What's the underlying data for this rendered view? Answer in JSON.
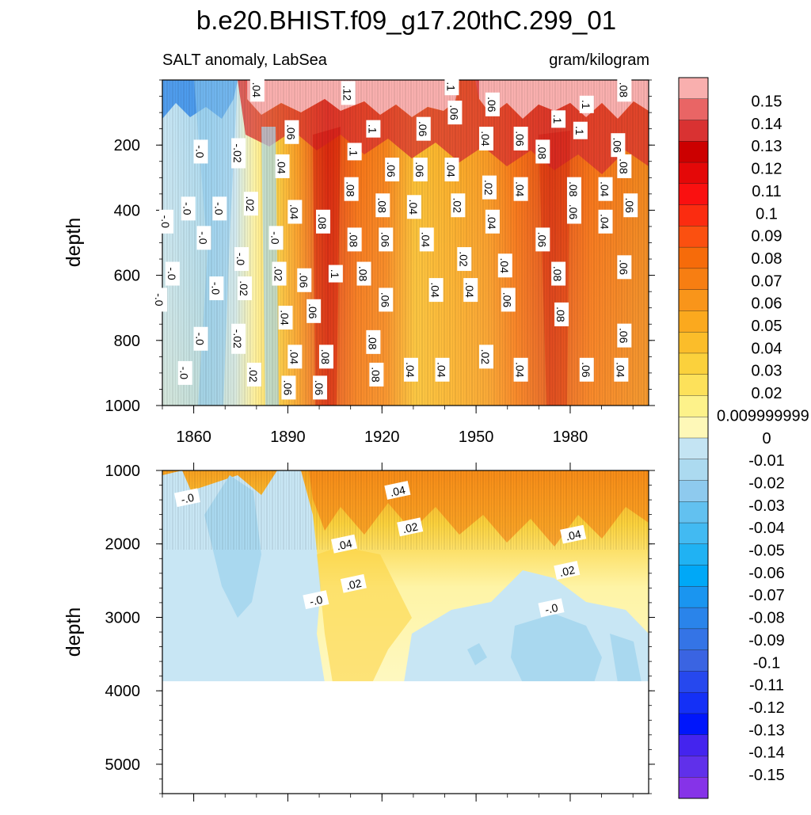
{
  "chart_data": [
    {
      "type": "heatmap",
      "panel": "upper",
      "title": "b.e20.BHIST.f09_g17.20thC.299_01",
      "left_string": "SALT anomaly, LabSea",
      "right_string": "gram/kilogram",
      "ylabel": "depth",
      "xlabel": "",
      "xlim": [
        1850,
        2005
      ],
      "ylim": [
        0,
        1000
      ],
      "y_reversed": true,
      "x_ticks": [
        1860,
        1890,
        1920,
        1950,
        1980
      ],
      "y_ticks": [
        200,
        400,
        600,
        800,
        1000
      ],
      "contour_labels": [
        {
          "x": 1880,
          "y": 30,
          "label": ".04"
        },
        {
          "x": 1909,
          "y": 40,
          "label": ".12"
        },
        {
          "x": 1942,
          "y": 20,
          "label": ".1"
        },
        {
          "x": 1955,
          "y": 75,
          "label": ".06"
        },
        {
          "x": 1985,
          "y": 75,
          "label": ".1"
        },
        {
          "x": 1976,
          "y": 120,
          "label": ".1"
        },
        {
          "x": 1997,
          "y": 30,
          "label": ".08"
        },
        {
          "x": 1891,
          "y": 160,
          "label": ".06"
        },
        {
          "x": 1917,
          "y": 150,
          "label": ".1"
        },
        {
          "x": 1933,
          "y": 150,
          "label": ".06"
        },
        {
          "x": 1943,
          "y": 100,
          "label": ".06"
        },
        {
          "x": 1953,
          "y": 180,
          "label": ".04"
        },
        {
          "x": 1964,
          "y": 180,
          "label": ".06"
        },
        {
          "x": 1983,
          "y": 155,
          "label": ".1"
        },
        {
          "x": 1911,
          "y": 220,
          "label": ".1"
        },
        {
          "x": 1923,
          "y": 275,
          "label": ".06"
        },
        {
          "x": 1932,
          "y": 275,
          "label": ".06"
        },
        {
          "x": 1942,
          "y": 275,
          "label": ".04"
        },
        {
          "x": 1954,
          "y": 330,
          "label": ".02"
        },
        {
          "x": 1964,
          "y": 335,
          "label": ".04"
        },
        {
          "x": 1971,
          "y": 220,
          "label": ".08"
        },
        {
          "x": 1981,
          "y": 335,
          "label": ".08"
        },
        {
          "x": 1991,
          "y": 335,
          "label": ".04"
        },
        {
          "x": 1997,
          "y": 265,
          "label": ".08"
        },
        {
          "x": 1995,
          "y": 200,
          "label": ".06"
        },
        {
          "x": 1862,
          "y": 220,
          "label": "-.0"
        },
        {
          "x": 1874,
          "y": 225,
          "label": "-.02"
        },
        {
          "x": 1888,
          "y": 265,
          "label": ".04"
        },
        {
          "x": 1858,
          "y": 395,
          "label": "-.0"
        },
        {
          "x": 1868,
          "y": 395,
          "label": "-.0"
        },
        {
          "x": 1878,
          "y": 380,
          "label": ".02"
        },
        {
          "x": 1892,
          "y": 405,
          "label": ".04"
        },
        {
          "x": 1901,
          "y": 435,
          "label": ".08"
        },
        {
          "x": 1910,
          "y": 335,
          "label": ".08"
        },
        {
          "x": 1920,
          "y": 385,
          "label": ".08"
        },
        {
          "x": 1930,
          "y": 390,
          "label": ".04"
        },
        {
          "x": 1944,
          "y": 385,
          "label": ".02"
        },
        {
          "x": 1955,
          "y": 435,
          "label": ".04"
        },
        {
          "x": 1981,
          "y": 405,
          "label": ".06"
        },
        {
          "x": 1991,
          "y": 435,
          "label": ".04"
        },
        {
          "x": 1999,
          "y": 385,
          "label": ".06"
        },
        {
          "x": 1851,
          "y": 435,
          "label": "-.0"
        },
        {
          "x": 1863,
          "y": 485,
          "label": "-.0"
        },
        {
          "x": 1886,
          "y": 485,
          "label": "-.0"
        },
        {
          "x": 1911,
          "y": 490,
          "label": ".08"
        },
        {
          "x": 1921,
          "y": 490,
          "label": ".06"
        },
        {
          "x": 1934,
          "y": 490,
          "label": ".04"
        },
        {
          "x": 1971,
          "y": 490,
          "label": ".06"
        },
        {
          "x": 1875,
          "y": 550,
          "label": "-.0"
        },
        {
          "x": 1946,
          "y": 550,
          "label": ".02"
        },
        {
          "x": 1959,
          "y": 570,
          "label": ".04"
        },
        {
          "x": 1853,
          "y": 595,
          "label": "-.0"
        },
        {
          "x": 1887,
          "y": 595,
          "label": ".02"
        },
        {
          "x": 1905,
          "y": 595,
          "label": ".1"
        },
        {
          "x": 1914,
          "y": 595,
          "label": ".08"
        },
        {
          "x": 1976,
          "y": 595,
          "label": ".08"
        },
        {
          "x": 1997,
          "y": 575,
          "label": ".06"
        },
        {
          "x": 1895,
          "y": 615,
          "label": ".06"
        },
        {
          "x": 1867,
          "y": 640,
          "label": "-.0"
        },
        {
          "x": 1876,
          "y": 640,
          "label": ".02"
        },
        {
          "x": 1937,
          "y": 645,
          "label": ".04"
        },
        {
          "x": 1948,
          "y": 645,
          "label": ".04"
        },
        {
          "x": 1849,
          "y": 675,
          "label": "-.0"
        },
        {
          "x": 1921,
          "y": 675,
          "label": ".06"
        },
        {
          "x": 1960,
          "y": 675,
          "label": ".06"
        },
        {
          "x": 1889,
          "y": 730,
          "label": ".04"
        },
        {
          "x": 1898,
          "y": 710,
          "label": ".06"
        },
        {
          "x": 1977,
          "y": 720,
          "label": ".08"
        },
        {
          "x": 1862,
          "y": 795,
          "label": "-.0"
        },
        {
          "x": 1874,
          "y": 795,
          "label": "-.02"
        },
        {
          "x": 1917,
          "y": 805,
          "label": ".08"
        },
        {
          "x": 1997,
          "y": 785,
          "label": ".06"
        },
        {
          "x": 1892,
          "y": 850,
          "label": ".04"
        },
        {
          "x": 1902,
          "y": 850,
          "label": ".08"
        },
        {
          "x": 1953,
          "y": 850,
          "label": ".02"
        },
        {
          "x": 1857,
          "y": 900,
          "label": "-.0"
        },
        {
          "x": 1879,
          "y": 905,
          "label": ".02"
        },
        {
          "x": 1918,
          "y": 905,
          "label": ".08"
        },
        {
          "x": 1929,
          "y": 890,
          "label": ".04"
        },
        {
          "x": 1939,
          "y": 890,
          "label": ".04"
        },
        {
          "x": 1964,
          "y": 890,
          "label": ".04"
        },
        {
          "x": 1985,
          "y": 890,
          "label": ".06"
        },
        {
          "x": 1996,
          "y": 890,
          "label": ".04"
        },
        {
          "x": 1890,
          "y": 945,
          "label": ".06"
        },
        {
          "x": 1900,
          "y": 945,
          "label": ".06"
        }
      ]
    },
    {
      "type": "heatmap",
      "panel": "lower",
      "ylabel": "depth",
      "xlim": [
        1850,
        2005
      ],
      "ylim": [
        1000,
        5400
      ],
      "y_reversed": true,
      "y_ticks": [
        1000,
        2000,
        3000,
        4000,
        5000
      ],
      "data_bottom_depth": 3870,
      "contour_labels": [
        {
          "x": 1858,
          "y": 1380,
          "label": "-.0"
        },
        {
          "x": 1925,
          "y": 1280,
          "label": ".04"
        },
        {
          "x": 1929,
          "y": 1780,
          "label": ".02"
        },
        {
          "x": 1908,
          "y": 2010,
          "label": ".04"
        },
        {
          "x": 1911,
          "y": 2550,
          "label": ".02"
        },
        {
          "x": 1899,
          "y": 2770,
          "label": "-.0"
        },
        {
          "x": 1981,
          "y": 1880,
          "label": ".04"
        },
        {
          "x": 1979,
          "y": 2370,
          "label": ".02"
        },
        {
          "x": 1974,
          "y": 2880,
          "label": "-.0"
        }
      ]
    }
  ],
  "colorbar": {
    "labels": [
      "0.15",
      "0.14",
      "0.13",
      "0.12",
      "0.11",
      "0.1",
      "0.09",
      "0.08",
      "0.07",
      "0.06",
      "0.05",
      "0.04",
      "0.03",
      "0.02",
      "0.009999999",
      "0",
      "-0.01",
      "-0.02",
      "-0.03",
      "-0.04",
      "-0.05",
      "-0.06",
      "-0.07",
      "-0.08",
      "-0.09",
      "-0.1",
      "-0.11",
      "-0.12",
      "-0.13",
      "-0.14",
      "-0.15"
    ],
    "colors": [
      "#f9afae",
      "#e96565",
      "#d93232",
      "#cc0000",
      "#e40808",
      "#fa1010",
      "#fb2c10",
      "#fb5010",
      "#f66b0a",
      "#f77e12",
      "#f9951a",
      "#fba91e",
      "#fbbd2a",
      "#fbd13c",
      "#fde15a",
      "#fdf28a",
      "#fef8b8",
      "#c4e4f3",
      "#acdaf0",
      "#8ecaee",
      "#62c1f0",
      "#42baf2",
      "#20b2f3",
      "#00a8f7",
      "#1a95f0",
      "#2a84ea",
      "#3474e6",
      "#3a64e2",
      "#2648ee",
      "#1430f6",
      "#0016fb",
      "#4424ee",
      "#6030ea",
      "#8633e8"
    ]
  }
}
